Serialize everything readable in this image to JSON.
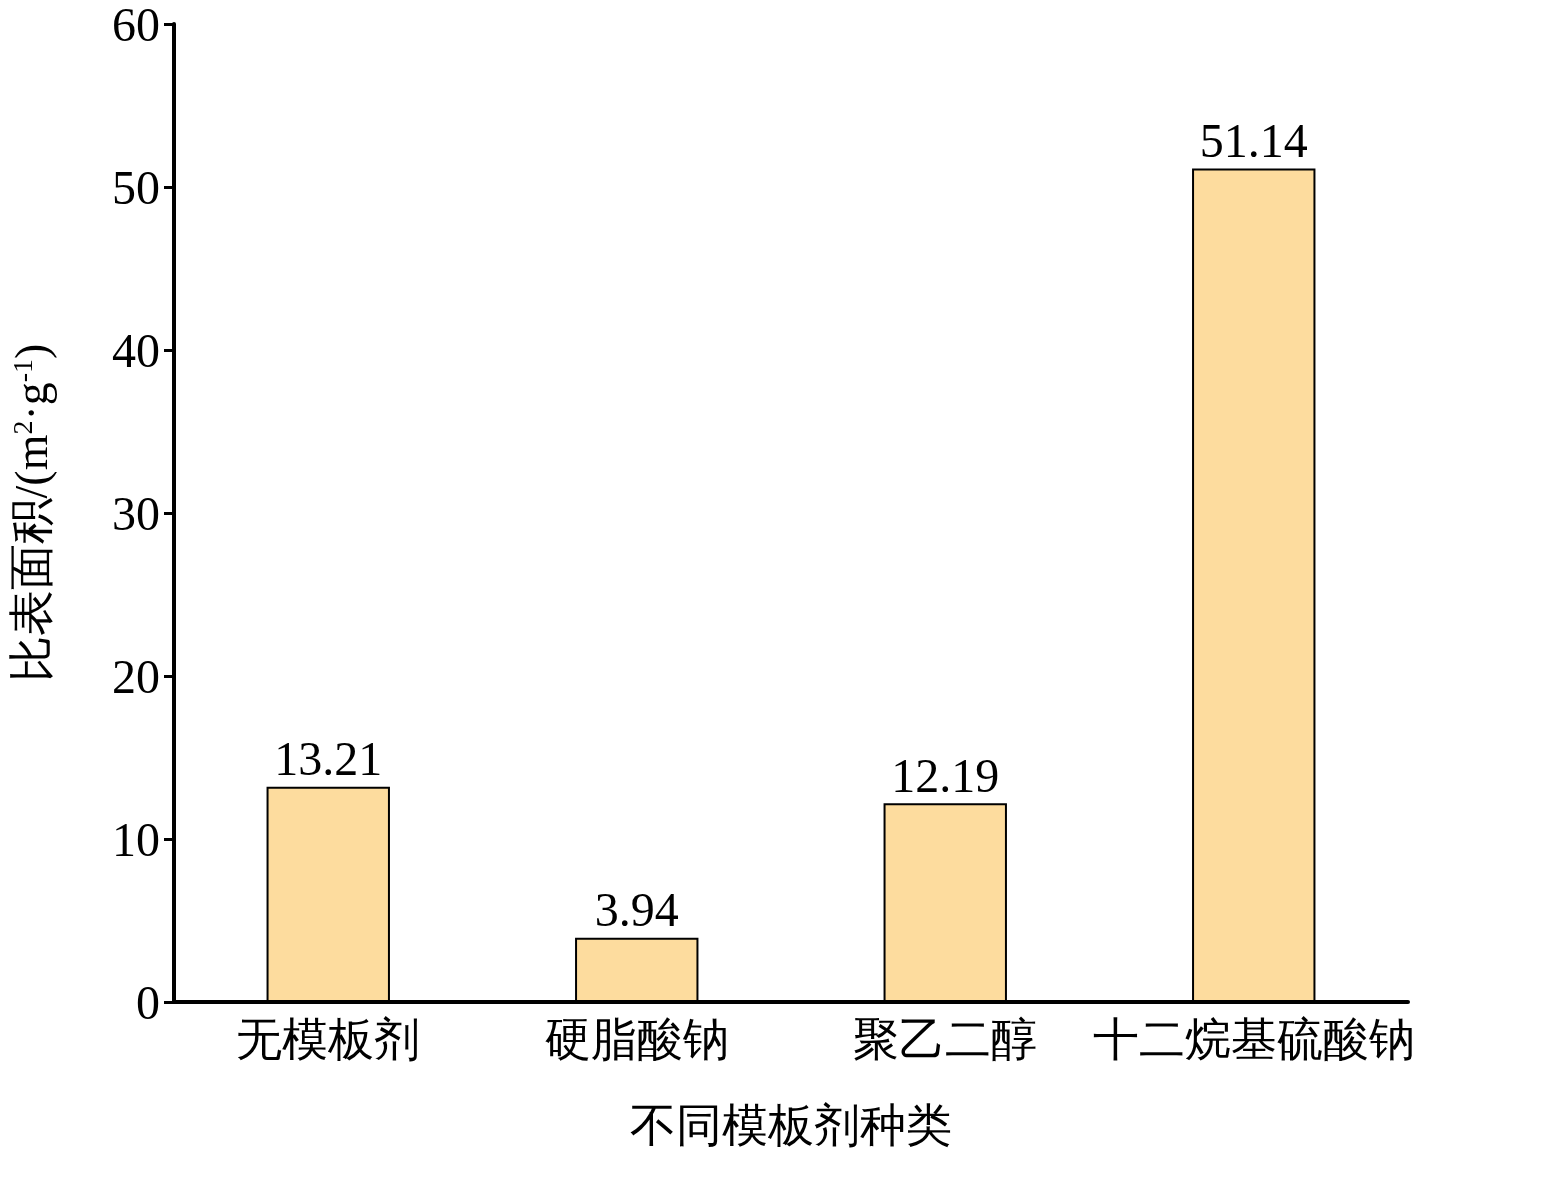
{
  "chart_data": {
    "type": "bar",
    "xlabel": "不同模板剂种类",
    "ylabel": "比表面积/(m$^{2}$·g$^{-1}$)",
    "categories": [
      "无模板剂",
      "硬脂酸钠",
      "聚乙二醇",
      "十二烷基硫酸钠"
    ],
    "values": [
      13.21,
      3.94,
      12.19,
      51.14
    ],
    "color": "#fddc9e",
    "ylim": [
      0,
      60
    ],
    "yticks": [
      0,
      10,
      20,
      30,
      40,
      50,
      60
    ],
    "grid": false,
    "data_labels": true
  }
}
